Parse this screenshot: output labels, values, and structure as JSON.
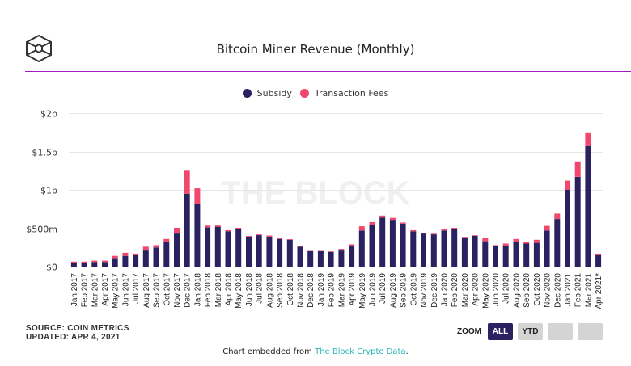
{
  "header": {
    "logo_icon": "the-block-cube-icon",
    "title": "Bitcoin Miner Revenue (Monthly)",
    "accent_color": "#9b1fc0"
  },
  "legend": [
    {
      "label": "Subsidy",
      "color": "#2a2160"
    },
    {
      "label": "Transaction Fees",
      "color": "#f2476d"
    }
  ],
  "watermark": "THE BLOCK",
  "footer": {
    "source": "SOURCE: COIN METRICS",
    "updated": "UPDATED: APR 4, 2021",
    "embed_prefix": "Chart embedded from ",
    "embed_link": "The Block Crypto Data",
    "embed_suffix": "."
  },
  "zoom": {
    "label": "ZOOM",
    "buttons": [
      {
        "label": "ALL",
        "active": true
      },
      {
        "label": "YTD",
        "active": false
      },
      {
        "label": "",
        "active": false
      },
      {
        "label": "",
        "active": false
      }
    ]
  },
  "chart_data": {
    "type": "bar",
    "stacked": true,
    "title": "Bitcoin Miner Revenue (Monthly)",
    "xlabel": "",
    "ylabel": "",
    "ylim": [
      0,
      2000000000
    ],
    "yticks": [
      {
        "value": 0,
        "label": "$0"
      },
      {
        "value": 500000000,
        "label": "$500m"
      },
      {
        "value": 1000000000,
        "label": "$1b"
      },
      {
        "value": 1500000000,
        "label": "$1.5b"
      },
      {
        "value": 2000000000,
        "label": "$2b"
      }
    ],
    "grid": true,
    "legend_position": "top-center",
    "categories": [
      "Jan 2017",
      "Feb 2017",
      "Mar 2017",
      "Apr 2017",
      "May 2017",
      "Jun 2017",
      "Jul 2017",
      "Aug 2017",
      "Sep 2017",
      "Oct 2017",
      "Nov 2017",
      "Dec 2017",
      "Jan 2018",
      "Feb 2018",
      "Mar 2018",
      "Apr 2018",
      "May 2018",
      "Jun 2018",
      "Jul 2018",
      "Aug 2018",
      "Sep 2018",
      "Oct 2018",
      "Nov 2018",
      "Dec 2018",
      "Jan 2019",
      "Feb 2019",
      "Mar 2019",
      "Apr 2019",
      "May 2019",
      "Jun 2019",
      "Jul 2019",
      "Aug 2019",
      "Sep 2019",
      "Oct 2019",
      "Nov 2019",
      "Dec 2019",
      "Jan 2020",
      "Feb 2020",
      "Mar 2020",
      "Apr 2020",
      "May 2020",
      "Jun 2020",
      "Jul 2020",
      "Aug 2020",
      "Sep 2020",
      "Oct 2020",
      "Nov 2020",
      "Dec 2020",
      "Jan 2021",
      "Feb 2021",
      "Mar 2021",
      "Apr 2021*"
    ],
    "series": [
      {
        "name": "Subsidy",
        "color": "#2a2160",
        "values": [
          50000000,
          50000000,
          60000000,
          60000000,
          110000000,
          140000000,
          150000000,
          210000000,
          250000000,
          320000000,
          430000000,
          950000000,
          820000000,
          510000000,
          520000000,
          460000000,
          490000000,
          390000000,
          410000000,
          390000000,
          360000000,
          350000000,
          260000000,
          200000000,
          200000000,
          190000000,
          210000000,
          270000000,
          470000000,
          540000000,
          640000000,
          610000000,
          560000000,
          460000000,
          430000000,
          420000000,
          470000000,
          490000000,
          380000000,
          400000000,
          330000000,
          270000000,
          270000000,
          320000000,
          300000000,
          310000000,
          470000000,
          620000000,
          1000000000,
          1170000000,
          1570000000,
          150000000
        ]
      },
      {
        "name": "Transaction Fees",
        "color": "#f2476d",
        "values": [
          15000000,
          15000000,
          18000000,
          18000000,
          30000000,
          40000000,
          20000000,
          50000000,
          30000000,
          40000000,
          75000000,
          300000000,
          200000000,
          25000000,
          15000000,
          15000000,
          15000000,
          10000000,
          10000000,
          15000000,
          10000000,
          8000000,
          8000000,
          5000000,
          5000000,
          8000000,
          20000000,
          20000000,
          55000000,
          40000000,
          25000000,
          25000000,
          15000000,
          15000000,
          10000000,
          8000000,
          15000000,
          15000000,
          8000000,
          8000000,
          40000000,
          10000000,
          30000000,
          40000000,
          25000000,
          40000000,
          60000000,
          70000000,
          120000000,
          200000000,
          180000000,
          20000000
        ]
      }
    ]
  }
}
